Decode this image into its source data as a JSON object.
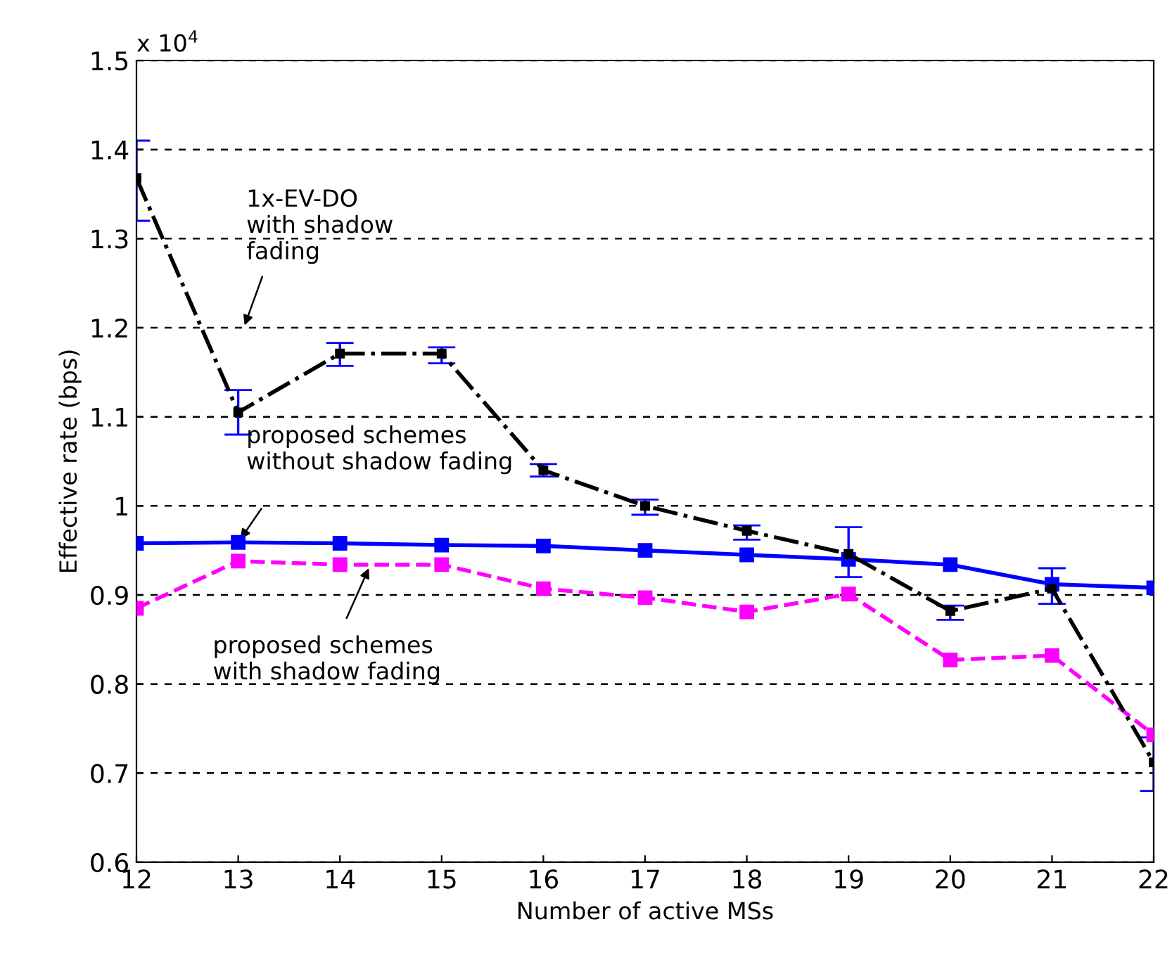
{
  "chart_data": {
    "type": "line",
    "xlabel": "Number of active MSs",
    "ylabel": "Effective rate (bps)",
    "x": [
      12,
      13,
      14,
      15,
      16,
      17,
      18,
      19,
      20,
      21,
      22
    ],
    "xlim": [
      12,
      22
    ],
    "xticks": [
      12,
      13,
      14,
      15,
      16,
      17,
      18,
      19,
      20,
      21,
      22
    ],
    "ylim": [
      0.6,
      1.5
    ],
    "yticks": [
      0.6,
      0.7,
      0.8,
      0.9,
      1,
      1.1,
      1.2,
      1.3,
      1.4,
      1.5
    ],
    "grid": "y",
    "marker": "square",
    "legend": false,
    "series": [
      {
        "color": "#000000",
        "line_style": "dashdot",
        "values": [
          1.368,
          1.105,
          1.171,
          1.171,
          1.04,
          1.0,
          0.972,
          0.946,
          0.882,
          0.907,
          0.712
        ],
        "errors": [
          [
            1.32,
            1.41
          ],
          [
            1.08,
            1.13
          ],
          [
            1.157,
            1.183
          ],
          [
            1.16,
            1.178
          ],
          [
            1.033,
            1.047
          ],
          [
            0.99,
            1.007
          ],
          [
            0.962,
            0.978
          ],
          [
            0.92,
            0.976
          ],
          [
            0.872,
            0.888
          ],
          [
            0.89,
            0.93
          ],
          [
            0.68,
            0.74
          ]
        ]
      },
      {
        "color": "#0000ff",
        "line_style": "solid",
        "values": [
          0.958,
          0.959,
          0.958,
          0.956,
          0.955,
          0.95,
          0.945,
          0.94,
          0.934,
          0.912,
          0.908
        ]
      },
      {
        "color": "#ff00ff",
        "line_style": "dashed",
        "values": [
          0.885,
          0.938,
          0.934,
          0.934,
          0.907,
          0.897,
          0.881,
          0.901,
          0.827,
          0.832,
          0.743
        ]
      }
    ],
    "annotations": [
      "x 10$^{4}$",
      "1x-EV-DO\nwith shadow\nfading",
      {
        "text": "proposed schemes\nwithout shadow fading",
        "x": 13.0,
        "y": 0.959
      },
      {
        "text": "proposed schemes\nwith shadow fading",
        "x": 14.3,
        "y": 0.934
      }
    ]
  }
}
